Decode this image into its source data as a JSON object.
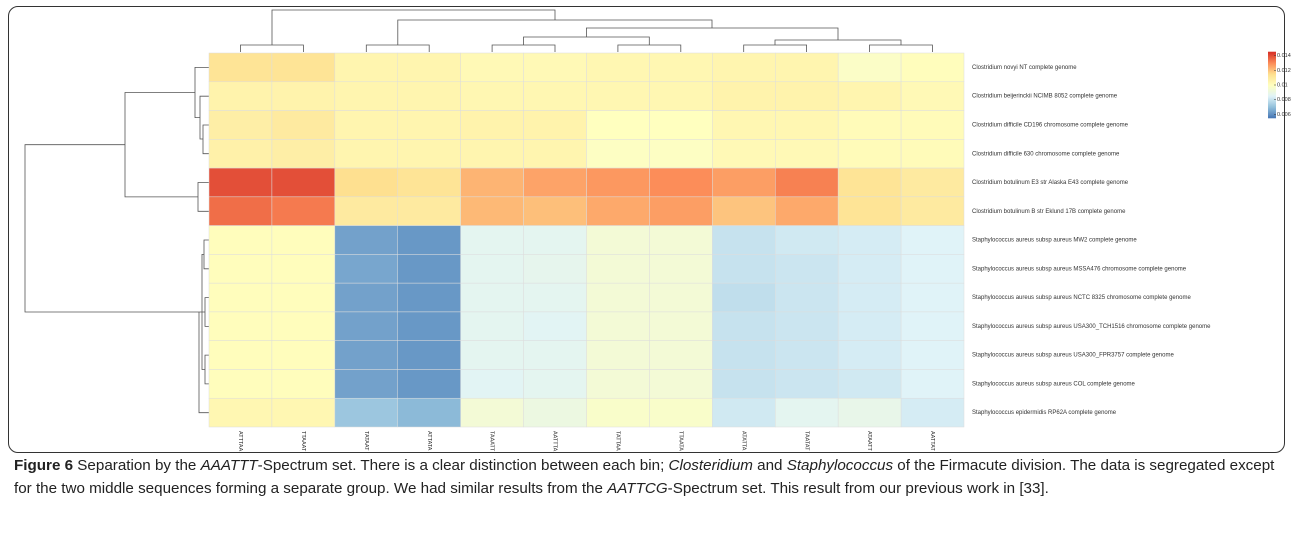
{
  "chart_data": {
    "type": "heatmap",
    "rows": [
      "Clostridium novyi NT complete genome",
      "Clostridium beijerinckii NCIMB 8052 complete genome",
      "Clostridium difficile CD196 chromosome complete genome",
      "Clostridium difficile 630 chromosome complete genome",
      "Clostridium botulinum E3 str Alaska E43 complete genome",
      "Clostridium botulinum B str Eklund 17B complete genome",
      "Staphylococcus aureus subsp aureus MW2 complete genome",
      "Staphylococcus aureus subsp aureus MSSA476 chromosome complete genome",
      "Staphylococcus aureus subsp aureus NCTC 8325 chromosome complete genome",
      "Staphylococcus aureus subsp aureus USA300_TCH1516 chromosome complete genome",
      "Staphylococcus aureus subsp aureus USA300_FPR3757 complete genome",
      "Staphylococcus aureus subsp aureus COL complete genome",
      "Staphylococcus epidermidis RP62A complete genome"
    ],
    "columns": [
      "ATTTAA",
      "TTAAAT",
      "TATAAT",
      "ATTATA",
      "TAAATT",
      "AATTTA",
      "TATTAA",
      "TTAATA",
      "ATATTA",
      "TAATAT",
      "ATAATT",
      "AATTAT"
    ],
    "values": [
      [
        0.0113,
        0.0113,
        0.0105,
        0.0105,
        0.0103,
        0.0103,
        0.0104,
        0.0104,
        0.0105,
        0.0105,
        0.0098,
        0.0101
      ],
      [
        0.0106,
        0.0106,
        0.0105,
        0.0105,
        0.0104,
        0.0104,
        0.0104,
        0.0104,
        0.0106,
        0.0106,
        0.0105,
        0.0103
      ],
      [
        0.0108,
        0.011,
        0.0105,
        0.0105,
        0.0106,
        0.0106,
        0.01,
        0.01,
        0.0104,
        0.0104,
        0.0102,
        0.0102
      ],
      [
        0.0107,
        0.0108,
        0.0105,
        0.0105,
        0.0105,
        0.0105,
        0.0099,
        0.0099,
        0.0103,
        0.0103,
        0.0102,
        0.0102
      ],
      [
        0.014,
        0.014,
        0.0115,
        0.0113,
        0.0123,
        0.0126,
        0.0128,
        0.013,
        0.0127,
        0.0132,
        0.0113,
        0.011
      ],
      [
        0.0135,
        0.0133,
        0.011,
        0.011,
        0.0122,
        0.0121,
        0.0125,
        0.0127,
        0.012,
        0.0125,
        0.0113,
        0.011
      ],
      [
        0.0101,
        0.0101,
        0.0064,
        0.0062,
        0.0087,
        0.0087,
        0.0094,
        0.0094,
        0.008,
        0.0082,
        0.0083,
        0.0085
      ],
      [
        0.0101,
        0.0101,
        0.0065,
        0.0062,
        0.0087,
        0.0088,
        0.0094,
        0.0094,
        0.008,
        0.0081,
        0.0083,
        0.0085
      ],
      [
        0.0101,
        0.0101,
        0.0064,
        0.0062,
        0.0087,
        0.0087,
        0.0094,
        0.0094,
        0.0079,
        0.0081,
        0.0083,
        0.0085
      ],
      [
        0.0101,
        0.0101,
        0.0064,
        0.0062,
        0.0087,
        0.0086,
        0.0094,
        0.0094,
        0.008,
        0.0081,
        0.0083,
        0.0085
      ],
      [
        0.0101,
        0.0101,
        0.0064,
        0.0062,
        0.0087,
        0.0087,
        0.0094,
        0.0094,
        0.008,
        0.0081,
        0.0083,
        0.0085
      ],
      [
        0.0101,
        0.0101,
        0.0064,
        0.0062,
        0.0086,
        0.0087,
        0.0094,
        0.0094,
        0.008,
        0.0081,
        0.0082,
        0.0085
      ],
      [
        0.0104,
        0.0104,
        0.0072,
        0.0069,
        0.0094,
        0.0091,
        0.0097,
        0.0097,
        0.0082,
        0.0087,
        0.0089,
        0.0083
      ]
    ],
    "colorscale": [
      "#4575b4",
      "#91bfdb",
      "#e0f3f8",
      "#ffffbf",
      "#fee090",
      "#fc8d59",
      "#d73027"
    ],
    "zlim": [
      0.0055,
      0.0145
    ],
    "zticks": [
      0.014,
      0.012,
      0.01,
      0.008,
      0.006
    ]
  },
  "caption": {
    "label": "Figure 6",
    "parts": [
      {
        "text": " Separation by the "
      },
      {
        "text": "AAATTT",
        "italic": true
      },
      {
        "text": "-Spectrum set. There is a clear distinction between each bin; "
      },
      {
        "text": "Closteridium",
        "italic": true
      },
      {
        "text": " and "
      },
      {
        "text": "Staphylococcus",
        "italic": true
      },
      {
        "text": " of the Firmacute division. The data is segregated except for the two middle sequences forming a separate group. We had similar results from the "
      },
      {
        "text": "AATTCG",
        "italic": true
      },
      {
        "text": "-Spectrum set. This result from our previous work in [33]."
      }
    ]
  }
}
